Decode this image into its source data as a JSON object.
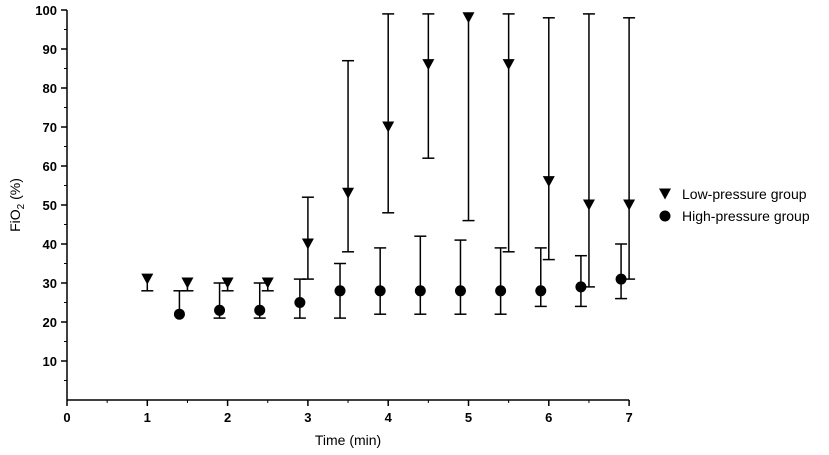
{
  "chart_data": {
    "type": "scatter",
    "xlabel": "Time (min)",
    "ylabel_main": "FiO",
    "ylabel_sub": "2",
    "ylabel_tail": " (%)",
    "xlim": [
      0,
      7
    ],
    "ylim": [
      0,
      100
    ],
    "x_ticks": [
      0,
      1,
      2,
      3,
      4,
      5,
      6,
      7
    ],
    "y_ticks": [
      10,
      20,
      30,
      40,
      50,
      60,
      70,
      80,
      90,
      100
    ],
    "grid": false,
    "legend_position": "right",
    "series": [
      {
        "name": "Low-pressure group",
        "marker": "triangle-down",
        "error_side": "up",
        "points": [
          {
            "x": 1.0,
            "y": 31,
            "err": 28
          },
          {
            "x": 1.5,
            "y": 30,
            "err": 28
          },
          {
            "x": 2.0,
            "y": 30,
            "err": 28
          },
          {
            "x": 2.5,
            "y": 30,
            "err": 28
          },
          {
            "x": 3.0,
            "y": 40,
            "err": 31,
            "err_hi": 52
          },
          {
            "x": 3.5,
            "y": 53,
            "err": 38,
            "err_hi": 87
          },
          {
            "x": 4.0,
            "y": 70,
            "err": 48,
            "err_hi": 99
          },
          {
            "x": 4.5,
            "y": 86,
            "err": 62,
            "err_hi": 99
          },
          {
            "x": 5.0,
            "y": 98,
            "err": 46
          },
          {
            "x": 5.5,
            "y": 86,
            "err": 38,
            "err_hi": 99
          },
          {
            "x": 6.0,
            "y": 56,
            "err": 36,
            "err_hi": 98
          },
          {
            "x": 6.5,
            "y": 50,
            "err": 29,
            "err_hi": 99
          },
          {
            "x": 7.0,
            "y": 50,
            "err": 31,
            "err_hi": 98
          }
        ]
      },
      {
        "name": "High-pressure group",
        "marker": "circle",
        "points": [
          {
            "x": 1.4,
            "y": 22,
            "lo": 22,
            "hi": 28
          },
          {
            "x": 1.9,
            "y": 23,
            "lo": 21,
            "hi": 30
          },
          {
            "x": 2.4,
            "y": 23,
            "lo": 21,
            "hi": 30
          },
          {
            "x": 2.9,
            "y": 25,
            "lo": 21,
            "hi": 31
          },
          {
            "x": 3.4,
            "y": 28,
            "lo": 21,
            "hi": 35
          },
          {
            "x": 3.9,
            "y": 28,
            "lo": 22,
            "hi": 39
          },
          {
            "x": 4.4,
            "y": 28,
            "lo": 22,
            "hi": 42
          },
          {
            "x": 4.9,
            "y": 28,
            "lo": 22,
            "hi": 41
          },
          {
            "x": 5.4,
            "y": 28,
            "lo": 22,
            "hi": 39
          },
          {
            "x": 5.9,
            "y": 28,
            "lo": 24,
            "hi": 39
          },
          {
            "x": 6.4,
            "y": 29,
            "lo": 24,
            "hi": 37
          },
          {
            "x": 6.9,
            "y": 31,
            "lo": 26,
            "hi": 40
          }
        ]
      }
    ]
  }
}
